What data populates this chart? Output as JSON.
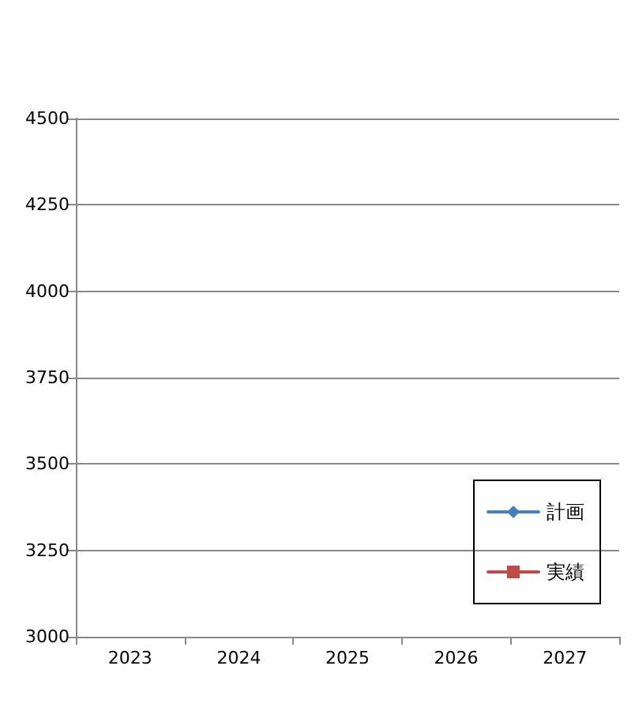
{
  "chart_data": {
    "type": "line",
    "categories": [
      "2023",
      "2024",
      "2025",
      "2026",
      "2027"
    ],
    "series": [
      {
        "name": "計画",
        "color": "#4a7ebb",
        "marker": "diamond",
        "values": [
          null,
          null,
          null,
          null,
          null
        ]
      },
      {
        "name": "実績",
        "color": "#be4b48",
        "marker": "square",
        "values": [
          null,
          null,
          null,
          null,
          null
        ]
      }
    ],
    "ylim": [
      3000,
      4500
    ],
    "yticks": [
      3000,
      3250,
      3500,
      3750,
      4000,
      4250,
      4500
    ],
    "grid": "y",
    "legend": "bottom right"
  }
}
